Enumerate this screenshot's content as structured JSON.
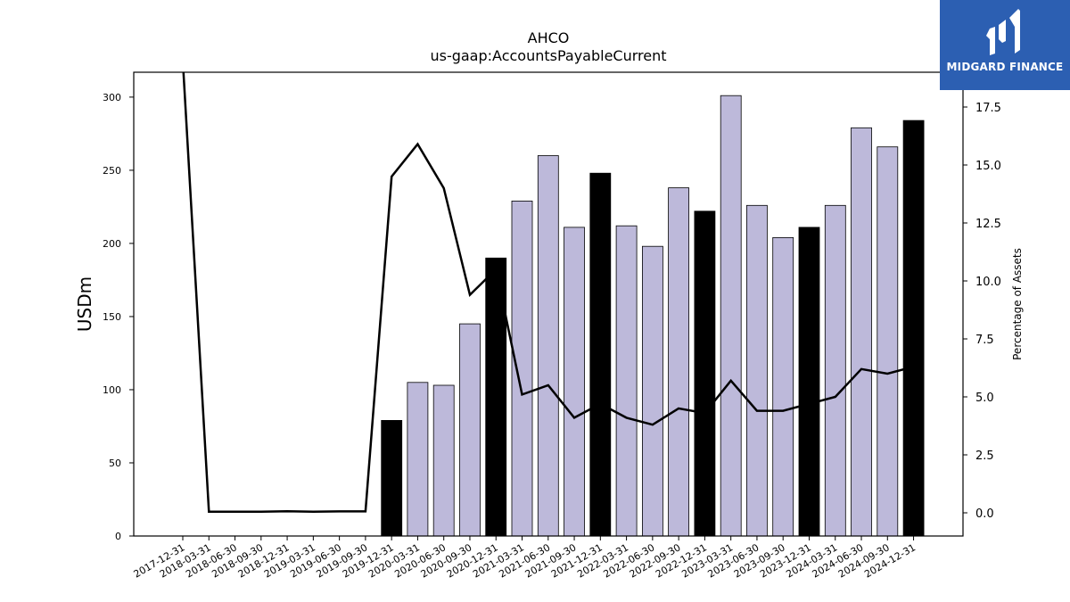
{
  "chart_data": {
    "type": "bar+line",
    "title": "AHCO",
    "subtitle": "us-gaap:AccountsPayableCurrent",
    "ylabel": "USDm",
    "y2label": "Percentage of Assets",
    "ylim": [
      0,
      317
    ],
    "y2lim": [
      -1.0,
      19.0
    ],
    "yticks": [
      0,
      50,
      100,
      150,
      200,
      250,
      300
    ],
    "y2ticks": [
      "0.0",
      "2.5",
      "5.0",
      "7.5",
      "10.0",
      "12.5",
      "15.0",
      "17.5"
    ],
    "categories": [
      "2017-12-31",
      "2018-03-31",
      "2018-06-30",
      "2018-09-30",
      "2018-12-31",
      "2019-03-31",
      "2019-06-30",
      "2019-09-30",
      "2019-12-31",
      "2020-03-31",
      "2020-06-30",
      "2020-09-30",
      "2020-12-31",
      "2021-03-31",
      "2021-06-30",
      "2021-09-30",
      "2021-12-31",
      "2022-03-31",
      "2022-06-30",
      "2022-09-30",
      "2022-12-31",
      "2023-03-31",
      "2023-06-30",
      "2023-09-30",
      "2023-12-31",
      "2024-03-31",
      "2024-06-30",
      "2024-09-30",
      "2024-12-31"
    ],
    "bars": [
      null,
      null,
      null,
      null,
      null,
      null,
      null,
      null,
      79,
      105,
      103,
      145,
      190,
      229,
      260,
      211,
      248,
      212,
      198,
      238,
      222,
      301,
      226,
      204,
      211,
      226,
      279,
      266,
      284
    ],
    "bar_highlight": [
      false,
      false,
      false,
      false,
      false,
      false,
      false,
      false,
      true,
      false,
      false,
      false,
      true,
      false,
      false,
      false,
      true,
      false,
      false,
      false,
      true,
      false,
      false,
      false,
      true,
      false,
      false,
      false,
      true
    ],
    "line": [
      19.5,
      0.05,
      0.05,
      0.05,
      0.07,
      0.05,
      0.06,
      0.06,
      14.5,
      15.9,
      14.0,
      9.4,
      10.5,
      5.1,
      5.5,
      4.1,
      4.7,
      4.1,
      3.8,
      4.5,
      4.3,
      5.7,
      4.4,
      4.4,
      4.7,
      5.0,
      6.2,
      6.0,
      6.3
    ],
    "colors": {
      "bar": "#bdb9da",
      "bar_highlight": "#000000",
      "line": "#000000"
    }
  },
  "logo": {
    "text": "MIDGARD FINANCE",
    "background": "#2c5fb2"
  }
}
